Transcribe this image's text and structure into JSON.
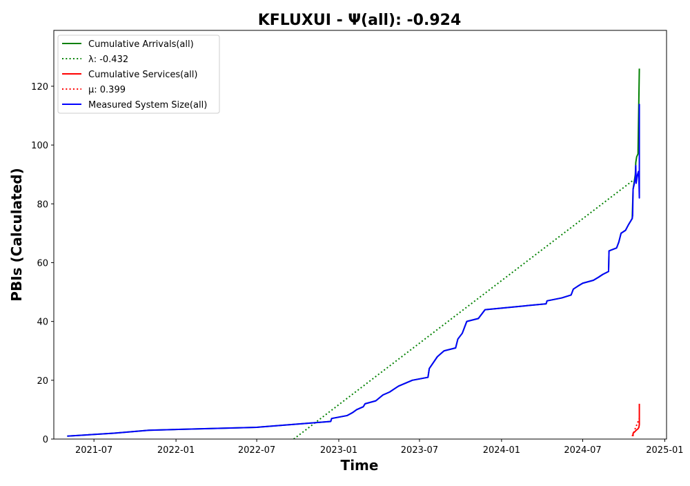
{
  "chart_data": {
    "type": "line",
    "title": "KFLUXUI -  Ψ(all): -0.924",
    "xlabel": "Time",
    "ylabel": "PBIs (Calculated)",
    "xlim": [
      "2021-04-02",
      "2025-01-05"
    ],
    "ylim": [
      0,
      139
    ],
    "grid": false,
    "legend_position": "top-left",
    "x_ticks": [
      "2021-07",
      "2022-01",
      "2022-07",
      "2023-01",
      "2023-07",
      "2024-01",
      "2024-07",
      "2025-01"
    ],
    "y_ticks": [
      0,
      20,
      40,
      60,
      80,
      100,
      120
    ],
    "series": [
      {
        "name": "Cumulative Arrivals(all)",
        "color": "#008000",
        "style": "solid",
        "points": [
          [
            "2021-05-02",
            1
          ],
          [
            "2021-08-15",
            2
          ],
          [
            "2021-11-01",
            3
          ],
          [
            "2022-07-01",
            4
          ],
          [
            "2022-12-14",
            6
          ],
          [
            "2022-12-16",
            7
          ],
          [
            "2023-01-20",
            8
          ],
          [
            "2023-02-01",
            9
          ],
          [
            "2023-02-10",
            10
          ],
          [
            "2023-02-25",
            11
          ],
          [
            "2023-03-01",
            12
          ],
          [
            "2023-03-25",
            13
          ],
          [
            "2023-04-10",
            15
          ],
          [
            "2023-04-25",
            16
          ],
          [
            "2023-05-05",
            17
          ],
          [
            "2023-05-15",
            18
          ],
          [
            "2023-06-15",
            20
          ],
          [
            "2023-07-20",
            21
          ],
          [
            "2023-07-23",
            24
          ],
          [
            "2023-08-01",
            26
          ],
          [
            "2023-08-10",
            28
          ],
          [
            "2023-08-25",
            30
          ],
          [
            "2023-09-20",
            31
          ],
          [
            "2023-09-25",
            34
          ],
          [
            "2023-10-05",
            36
          ],
          [
            "2023-10-10",
            38
          ],
          [
            "2023-10-15",
            40
          ],
          [
            "2023-11-10",
            41
          ],
          [
            "2023-11-20",
            43
          ],
          [
            "2023-11-25",
            44
          ],
          [
            "2024-04-10",
            46
          ],
          [
            "2024-04-12",
            47
          ],
          [
            "2024-05-15",
            48
          ],
          [
            "2024-06-05",
            49
          ],
          [
            "2024-06-10",
            51
          ],
          [
            "2024-06-20",
            52
          ],
          [
            "2024-07-01",
            53
          ],
          [
            "2024-07-25",
            54
          ],
          [
            "2024-08-05",
            55
          ],
          [
            "2024-08-15",
            56
          ],
          [
            "2024-08-28",
            57
          ],
          [
            "2024-08-29",
            64
          ],
          [
            "2024-09-15",
            65
          ],
          [
            "2024-09-20",
            67
          ],
          [
            "2024-09-25",
            70
          ],
          [
            "2024-10-05",
            71
          ],
          [
            "2024-10-12",
            73
          ],
          [
            "2024-10-20",
            75
          ],
          [
            "2024-10-22",
            85
          ],
          [
            "2024-10-25",
            88
          ],
          [
            "2024-10-27",
            90
          ],
          [
            "2024-10-28",
            94
          ],
          [
            "2024-10-30",
            96
          ],
          [
            "2024-11-02",
            97
          ],
          [
            "2024-11-05",
            126
          ]
        ]
      },
      {
        "name": "λ: -0.432",
        "color": "#008000",
        "style": "dotted",
        "points": [
          [
            "2022-09-22",
            0
          ],
          [
            "2024-10-22",
            88
          ]
        ]
      },
      {
        "name": "Cumulative Services(all)",
        "color": "#ff0000",
        "style": "solid",
        "points": [
          [
            "2024-10-22",
            1
          ],
          [
            "2024-10-22",
            2
          ],
          [
            "2024-10-26",
            2.5
          ],
          [
            "2024-10-29",
            3
          ],
          [
            "2024-11-02",
            3.5
          ],
          [
            "2024-11-04",
            4
          ],
          [
            "2024-11-05",
            5
          ],
          [
            "2024-11-05",
            12
          ]
        ]
      },
      {
        "name": "μ: 0.399",
        "color": "#ff0000",
        "style": "dotted",
        "points": [
          [
            "2024-10-20",
            1
          ],
          [
            "2024-11-05",
            7
          ]
        ]
      },
      {
        "name": "Measured System Size(all)",
        "color": "#0000ff",
        "style": "solid",
        "points": [
          [
            "2021-05-02",
            1
          ],
          [
            "2021-08-15",
            2
          ],
          [
            "2021-11-01",
            3
          ],
          [
            "2022-07-01",
            4
          ],
          [
            "2022-12-14",
            6
          ],
          [
            "2022-12-16",
            7
          ],
          [
            "2023-01-20",
            8
          ],
          [
            "2023-02-01",
            9
          ],
          [
            "2023-02-10",
            10
          ],
          [
            "2023-02-25",
            11
          ],
          [
            "2023-03-01",
            12
          ],
          [
            "2023-03-25",
            13
          ],
          [
            "2023-04-10",
            15
          ],
          [
            "2023-04-25",
            16
          ],
          [
            "2023-05-05",
            17
          ],
          [
            "2023-05-15",
            18
          ],
          [
            "2023-06-15",
            20
          ],
          [
            "2023-07-20",
            21
          ],
          [
            "2023-07-23",
            24
          ],
          [
            "2023-08-01",
            26
          ],
          [
            "2023-08-10",
            28
          ],
          [
            "2023-08-25",
            30
          ],
          [
            "2023-09-20",
            31
          ],
          [
            "2023-09-25",
            34
          ],
          [
            "2023-10-05",
            36
          ],
          [
            "2023-10-10",
            38
          ],
          [
            "2023-10-15",
            40
          ],
          [
            "2023-11-10",
            41
          ],
          [
            "2023-11-20",
            43
          ],
          [
            "2023-11-25",
            44
          ],
          [
            "2024-04-10",
            46
          ],
          [
            "2024-04-12",
            47
          ],
          [
            "2024-05-15",
            48
          ],
          [
            "2024-06-05",
            49
          ],
          [
            "2024-06-10",
            51
          ],
          [
            "2024-06-20",
            52
          ],
          [
            "2024-07-01",
            53
          ],
          [
            "2024-07-25",
            54
          ],
          [
            "2024-08-05",
            55
          ],
          [
            "2024-08-15",
            56
          ],
          [
            "2024-08-28",
            57
          ],
          [
            "2024-08-29",
            64
          ],
          [
            "2024-09-15",
            65
          ],
          [
            "2024-09-20",
            67
          ],
          [
            "2024-09-25",
            70
          ],
          [
            "2024-10-05",
            71
          ],
          [
            "2024-10-12",
            73
          ],
          [
            "2024-10-20",
            75
          ],
          [
            "2024-10-21",
            76
          ],
          [
            "2024-10-22",
            85
          ],
          [
            "2024-10-25",
            87
          ],
          [
            "2024-10-27",
            89
          ],
          [
            "2024-10-28",
            93
          ],
          [
            "2024-10-29",
            87
          ],
          [
            "2024-11-01",
            90
          ],
          [
            "2024-11-03",
            91
          ],
          [
            "2024-11-04",
            89
          ],
          [
            "2024-11-05",
            82
          ],
          [
            "2024-11-05",
            114
          ]
        ]
      }
    ]
  }
}
